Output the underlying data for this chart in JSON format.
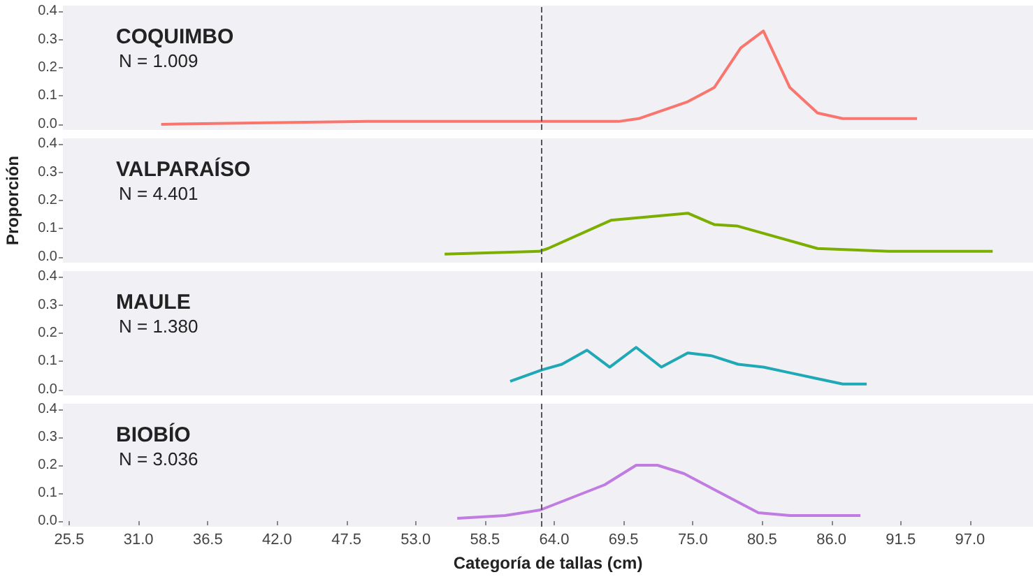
{
  "chart_data": [
    {
      "type": "line",
      "title": "COQUIMBO",
      "subtitle": "N = 1.009",
      "tick_labels": "y",
      "xlim": [
        25,
        102
      ],
      "ylim": [
        -0.02,
        0.42
      ],
      "yticks": [
        {
          "value": 0,
          "label": "0.0"
        },
        {
          "value": 0.1,
          "label": "0.1"
        },
        {
          "value": 0.2,
          "label": "0.2"
        },
        {
          "value": 0.3,
          "label": "0.3"
        },
        {
          "value": 0.4,
          "label": "0.4"
        }
      ],
      "ref_lines": [
        {
          "axis": "x",
          "value": 63,
          "line_style": "dashed",
          "color": "#555555"
        }
      ],
      "series": [
        {
          "color": "#f8766d",
          "x": [
            32.8,
            49.1,
            63.7,
            69.1,
            70.7,
            74.6,
            76.7,
            78.8,
            80.6,
            82.7,
            84.9,
            86.9,
            92.8
          ],
          "values": [
            0,
            0.01,
            0.01,
            0.01,
            0.02,
            0.08,
            0.13,
            0.27,
            0.33,
            0.13,
            0.04,
            0.02,
            0.02
          ]
        }
      ]
    },
    {
      "type": "line",
      "title": "VALPARAÍSO",
      "subtitle": "N = 4.401",
      "ylabel": "Proporción",
      "tick_labels": "y",
      "xlim": [
        25,
        102
      ],
      "ylim": [
        -0.02,
        0.42
      ],
      "yticks": [
        {
          "value": 0,
          "label": "0.0"
        },
        {
          "value": 0.1,
          "label": "0.1"
        },
        {
          "value": 0.2,
          "label": "0.2"
        },
        {
          "value": 0.3,
          "label": "0.3"
        },
        {
          "value": 0.4,
          "label": "0.4"
        }
      ],
      "ref_lines": [
        {
          "axis": "x",
          "value": 63,
          "line_style": "dashed",
          "color": "#555555"
        }
      ],
      "series": [
        {
          "color": "#7cae00",
          "x": [
            55.3,
            62.8,
            63.5,
            68.5,
            74.6,
            76.7,
            78.5,
            84.9,
            90.6,
            98.8
          ],
          "values": [
            0.01,
            0.02,
            0.03,
            0.13,
            0.155,
            0.115,
            0.11,
            0.03,
            0.02,
            0.02
          ]
        }
      ]
    },
    {
      "type": "line",
      "title": "MAULE",
      "subtitle": "N = 1.380",
      "tick_labels": "y",
      "xlim": [
        25,
        102
      ],
      "ylim": [
        -0.02,
        0.42
      ],
      "yticks": [
        {
          "value": 0,
          "label": "0.0"
        },
        {
          "value": 0.1,
          "label": "0.1"
        },
        {
          "value": 0.2,
          "label": "0.2"
        },
        {
          "value": 0.3,
          "label": "0.3"
        },
        {
          "value": 0.4,
          "label": "0.4"
        }
      ],
      "ref_lines": [
        {
          "axis": "x",
          "value": 63,
          "line_style": "dashed",
          "color": "#555555"
        }
      ],
      "series": [
        {
          "color": "#1fa8b5",
          "x": [
            60.5,
            63,
            64.6,
            66.6,
            68.4,
            70.5,
            72.5,
            74.6,
            76.5,
            78.6,
            80.6,
            82.7,
            84.8,
            86.9,
            88.8
          ],
          "values": [
            0.03,
            0.07,
            0.09,
            0.14,
            0.08,
            0.15,
            0.08,
            0.13,
            0.12,
            0.09,
            0.08,
            0.06,
            0.04,
            0.02,
            0.02
          ]
        }
      ]
    },
    {
      "type": "line",
      "title": "BIOBÍO",
      "subtitle": "N = 3.036",
      "xlabel": "Categoría de tallas (cm)",
      "xlim": [
        25,
        102
      ],
      "xticks": [
        {
          "value": 25.5,
          "label": "25.5"
        },
        {
          "value": 31,
          "label": "31.0"
        },
        {
          "value": 36.5,
          "label": "36.5"
        },
        {
          "value": 42,
          "label": "42.0"
        },
        {
          "value": 47.5,
          "label": "47.5"
        },
        {
          "value": 53,
          "label": "53.0"
        },
        {
          "value": 58.5,
          "label": "58.5"
        },
        {
          "value": 64,
          "label": "64.0"
        },
        {
          "value": 69.5,
          "label": "69.5"
        },
        {
          "value": 75,
          "label": "75.0"
        },
        {
          "value": 80.5,
          "label": "80.5"
        },
        {
          "value": 86,
          "label": "86.0"
        },
        {
          "value": 91.5,
          "label": "91.5"
        },
        {
          "value": 97,
          "label": "97.0"
        }
      ],
      "ylim": [
        -0.02,
        0.42
      ],
      "yticks": [
        {
          "value": 0,
          "label": "0.0"
        },
        {
          "value": 0.1,
          "label": "0.1"
        },
        {
          "value": 0.2,
          "label": "0.2"
        },
        {
          "value": 0.3,
          "label": "0.3"
        },
        {
          "value": 0.4,
          "label": "0.4"
        }
      ],
      "ref_lines": [
        {
          "axis": "x",
          "value": 63,
          "line_style": "dashed",
          "color": "#555555"
        }
      ],
      "series": [
        {
          "color": "#c07ce0",
          "x": [
            56.3,
            60.1,
            62.9,
            68,
            70.5,
            72.2,
            74.3,
            80.2,
            82.7,
            88.3
          ],
          "values": [
            0.01,
            0.02,
            0.04,
            0.13,
            0.2,
            0.2,
            0.17,
            0.03,
            0.02,
            0.02
          ]
        }
      ]
    }
  ]
}
